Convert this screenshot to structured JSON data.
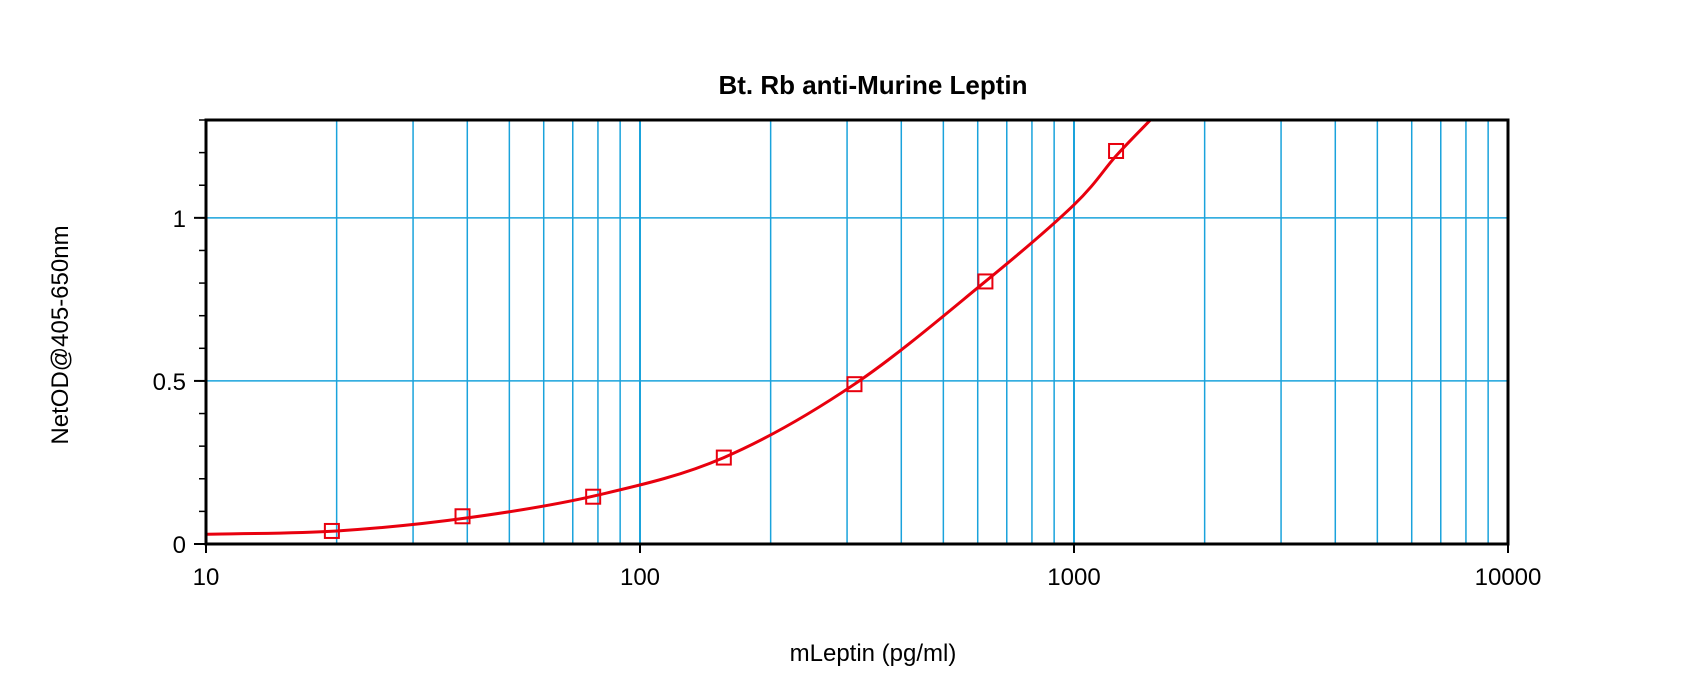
{
  "chart_data": {
    "type": "scatter",
    "title": "Bt. Rb anti-Murine Leptin",
    "xlabel": "mLeptin (pg/ml)",
    "ylabel": "NetOD@405-650nm",
    "x_scale": "log",
    "xlim": [
      10,
      10000
    ],
    "ylim": [
      0,
      1.3
    ],
    "x_ticks": [
      10,
      100,
      1000,
      10000
    ],
    "x_tick_labels": [
      "10",
      "100",
      "1000",
      "10000"
    ],
    "y_ticks": [
      0,
      0.5,
      1
    ],
    "y_tick_labels": [
      "0",
      "0.5",
      "1"
    ],
    "grid": true,
    "series": [
      {
        "marker": "open-square",
        "color": "#e8000e",
        "x": [
          19.5,
          39,
          78,
          156,
          312,
          625,
          1250
        ],
        "y": [
          0.04,
          0.085,
          0.145,
          0.265,
          0.49,
          0.805,
          1.205
        ]
      }
    ],
    "fit_curve": {
      "color": "#e8000e",
      "x": [
        10,
        20,
        40,
        80,
        156,
        312,
        625,
        1000,
        1250,
        1500
      ],
      "y": [
        0.03,
        0.04,
        0.08,
        0.15,
        0.265,
        0.49,
        0.805,
        1.04,
        1.19,
        1.3
      ]
    },
    "colors": {
      "grid": "#1aa3dc",
      "frame": "#000000",
      "series": "#e8000e"
    }
  }
}
